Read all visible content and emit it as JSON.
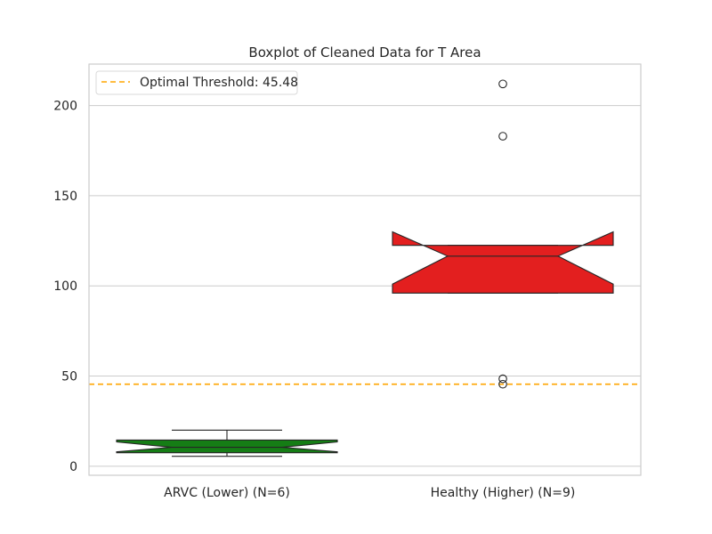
{
  "chart_data": {
    "type": "boxplot",
    "title": "Boxplot of Cleaned Data for T Area",
    "xlabel": "",
    "ylabel": "",
    "categories": [
      "ARVC (Lower) (N=6)",
      "Healthy (Higher) (N=9)"
    ],
    "ylim": [
      -5,
      223
    ],
    "yticks": [
      0,
      50,
      100,
      150,
      200
    ],
    "grid": true,
    "legend": {
      "position": "top-left",
      "label": "Optimal Threshold: 45.48"
    },
    "threshold": {
      "value": 45.48,
      "color": "#ffa500",
      "style": "dashed"
    },
    "boxes": [
      {
        "name": "ARVC (Lower) (N=6)",
        "color": "#157d15",
        "whisker_low": 5.5,
        "q1": 7.5,
        "median": 10.5,
        "q3": 14.5,
        "whisker_high": 20,
        "notch_low": 8,
        "notch_high": 13.5,
        "outliers": []
      },
      {
        "name": "Healthy (Higher) (N=9)",
        "color": "#e31f1f",
        "whisker_low": 96,
        "q1": 96,
        "median": 116.5,
        "q3": 122.5,
        "whisker_high": 122.5,
        "notch_low": 101,
        "notch_high": 130,
        "outliers": [
          212,
          183,
          48.5,
          45.5
        ]
      }
    ]
  }
}
